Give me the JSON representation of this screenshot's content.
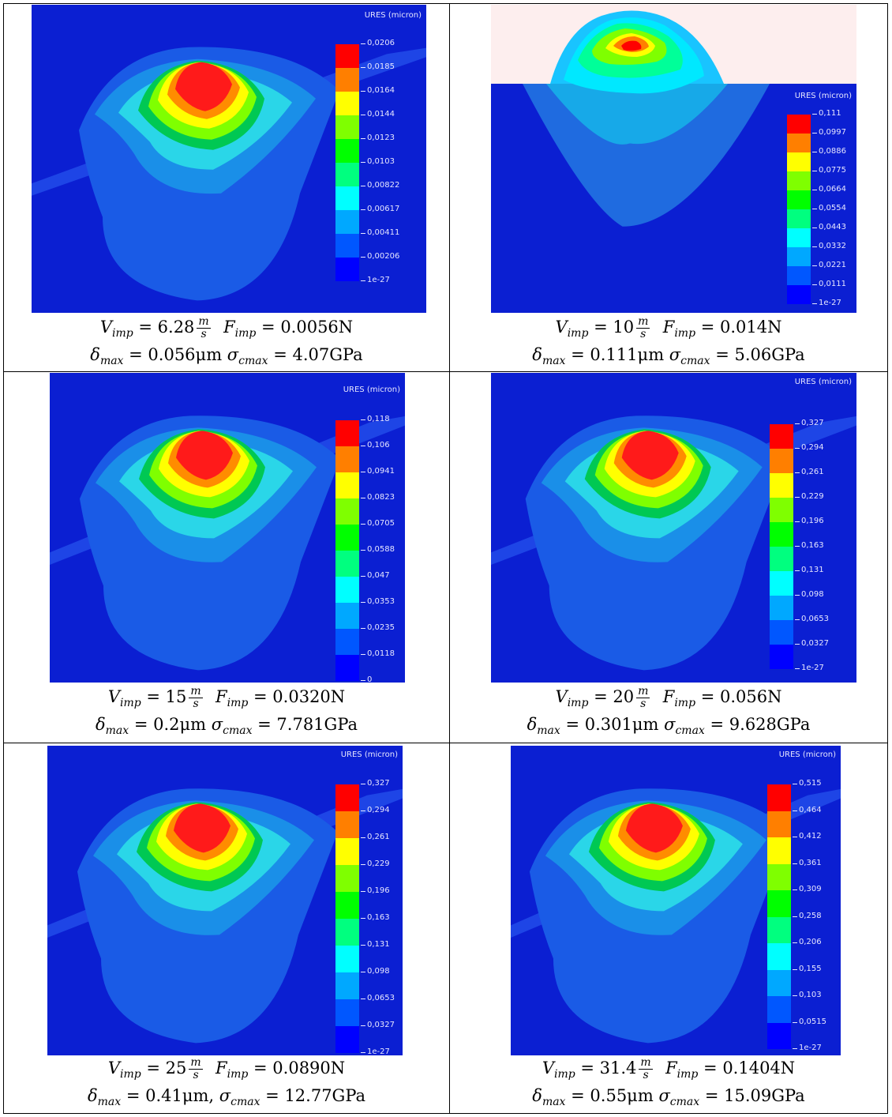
{
  "legend_title": "URES (micron)",
  "colors": {
    "scale": [
      "#ff0000",
      "#ff7f00",
      "#ffff00",
      "#7fff00",
      "#00ff00",
      "#00ff7f",
      "#00ffff",
      "#00a8ff",
      "#0057ff",
      "#0000ff"
    ],
    "background": "#0b1fd2",
    "top_panel_bg": "#fdeeee"
  },
  "panels": [
    {
      "legend_ticks": [
        "0,0206",
        "0,0185",
        "0,0164",
        "0,0144",
        "0,0123",
        "0,0103",
        "0,00822",
        "0,00617",
        "0,00411",
        "0,00206",
        "1e-27"
      ],
      "caption": {
        "v_sym": "V",
        "v_sub": "imp",
        "v_val": "= 6.28",
        "frac_num": "m",
        "frac_den": "s",
        "f_sym": "F",
        "f_sub": "imp",
        "f_val": "= 0.0056N",
        "d_sym": "δ",
        "d_sub": "max",
        "d_val": "=  0.056μm",
        "s_sym": "σ",
        "s_sub": "cmax",
        "s_val": "= 4.07GPa"
      }
    },
    {
      "legend_ticks": [
        "0,111",
        "0,0997",
        "0,0886",
        "0,0775",
        "0,0664",
        "0,0554",
        "0,0443",
        "0,0332",
        "0,0221",
        "0,0111",
        "1e-27"
      ],
      "caption": {
        "v_sym": "V",
        "v_sub": "imp",
        "v_val": "= 10",
        "frac_num": "m",
        "frac_den": "s",
        "f_sym": "F",
        "f_sub": "imp",
        "f_val": "= 0.014N",
        "d_sym": "δ",
        "d_sub": "max",
        "d_val": "=  0.111μm",
        "s_sym": "σ",
        "s_sub": "cmax",
        "s_val": "= 5.06GPa"
      }
    },
    {
      "legend_ticks": [
        "0,118",
        "0,106",
        "0,0941",
        "0,0823",
        "0,0705",
        "0,0588",
        "0,047",
        "0,0353",
        "0,0235",
        "0,0118",
        "0"
      ],
      "caption": {
        "v_sym": "V",
        "v_sub": "imp",
        "v_val": "= 15",
        "frac_num": "m",
        "frac_den": "s",
        "f_sym": "F",
        "f_sub": "imp",
        "f_val": "= 0.0320N",
        "d_sym": "δ",
        "d_sub": "max",
        "d_val": "=  0.2μm",
        "s_sym": "σ",
        "s_sub": "cmax",
        "s_val": "= 7.781GPa"
      }
    },
    {
      "legend_ticks": [
        "0,327",
        "0,294",
        "0,261",
        "0,229",
        "0,196",
        "0,163",
        "0,131",
        "0,098",
        "0,0653",
        "0,0327",
        "1e-27"
      ],
      "caption": {
        "v_sym": "V",
        "v_sub": "imp",
        "v_val": "= 20",
        "frac_num": "m",
        "frac_den": "s",
        "f_sym": "F",
        "f_sub": "imp",
        "f_val": "= 0.056N",
        "d_sym": "δ",
        "d_sub": "max",
        "d_val": "=  0.301μm",
        "s_sym": "σ",
        "s_sub": "cmax",
        "s_val": "= 9.628GPa"
      }
    },
    {
      "legend_ticks": [
        "0,327",
        "0,294",
        "0,261",
        "0,229",
        "0,196",
        "0,163",
        "0,131",
        "0,098",
        "0,0653",
        "0,0327",
        "1e-27"
      ],
      "caption": {
        "v_sym": "V",
        "v_sub": "imp",
        "v_val": "= 25",
        "frac_num": "m",
        "frac_den": "s",
        "f_sym": "F",
        "f_sub": "imp",
        "f_val": "= 0.0890N",
        "d_sym": "δ",
        "d_sub": "max",
        "d_val": "=  0.41μm,",
        "s_sym": "σ",
        "s_sub": "cmax",
        "s_val": "= 12.77GPa"
      }
    },
    {
      "legend_ticks": [
        "0,515",
        "0,464",
        "0,412",
        "0,361",
        "0,309",
        "0,258",
        "0,206",
        "0,155",
        "0,103",
        "0,0515",
        "1e-27"
      ],
      "caption": {
        "v_sym": "V",
        "v_sub": "imp",
        "v_val": "= 31.4",
        "frac_num": "m",
        "frac_den": "s",
        "f_sym": "F",
        "f_sub": "imp",
        "f_val": "= 0.1404N",
        "d_sym": "δ",
        "d_sub": "max",
        "d_val": "=  0.55μm",
        "s_sym": "σ",
        "s_sub": "cmax",
        "s_val": "= 15.09GPa"
      }
    }
  ]
}
